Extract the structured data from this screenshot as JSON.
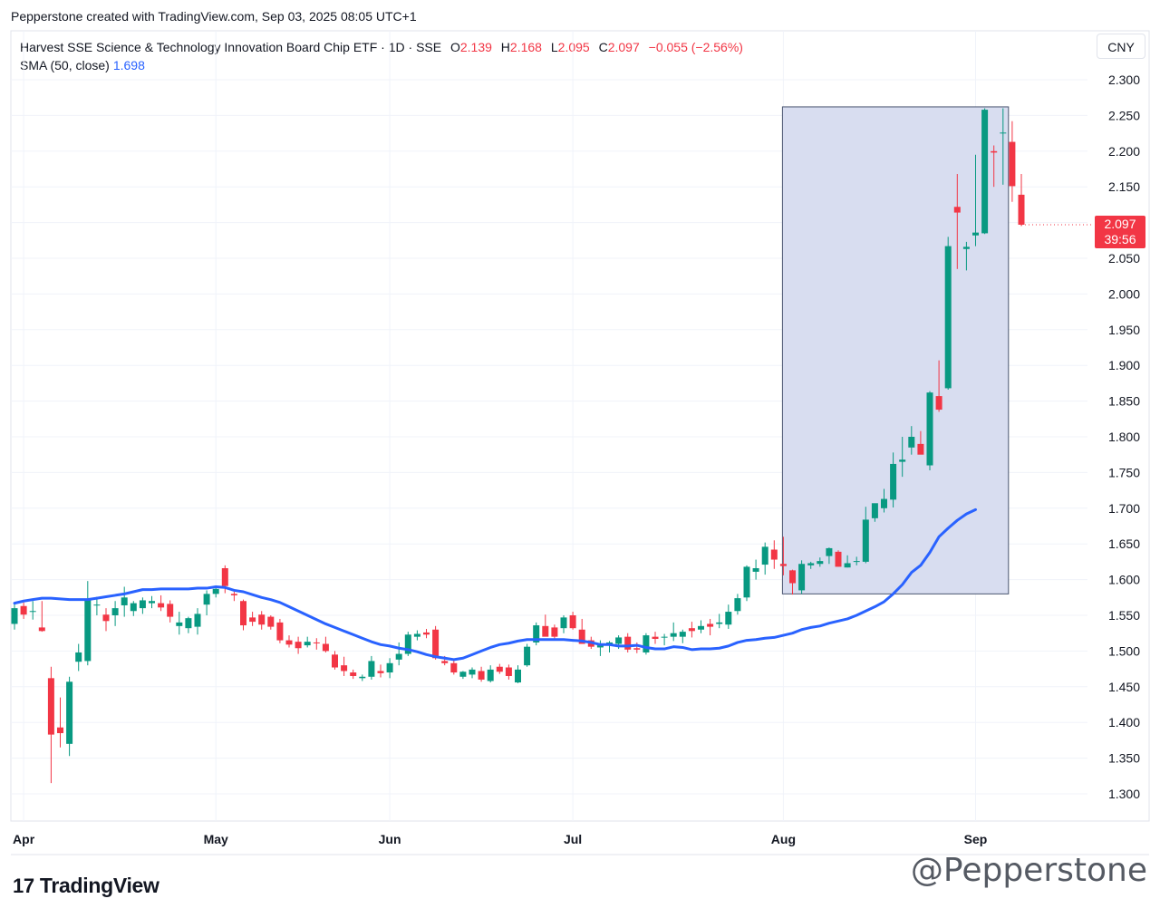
{
  "header": {
    "created_text": "Pepperstone created with TradingView.com, Sep 03, 2025 08:05 UTC+1"
  },
  "legend": {
    "symbol": "Harvest SSE Science & Technology Innovation Board Chip ETF · 1D · SSE",
    "o_label": "O",
    "o_value": "2.139",
    "h_label": "H",
    "h_value": "2.168",
    "l_label": "L",
    "l_value": "2.095",
    "c_label": "C",
    "c_value": "2.097",
    "change": "−0.055 (−2.56%)",
    "sma_label": "SMA (50, close)",
    "sma_value": "1.698"
  },
  "currency_button": "CNY",
  "last_price": {
    "price": "2.097",
    "countdown": "39:56"
  },
  "brand": {
    "mark": "17",
    "name": "TradingView"
  },
  "watermark": "@Pepperstone",
  "colors": {
    "up": "#089981",
    "down": "#f23645",
    "sma": "#2962ff",
    "highlight_fill": "#d6dbef",
    "highlight_stroke": "#4a5570"
  },
  "chart_data": {
    "type": "candlestick",
    "ylim": [
      1.28,
      2.32
    ],
    "y_ticks": [
      "1.300",
      "1.350",
      "1.400",
      "1.450",
      "1.500",
      "1.550",
      "1.600",
      "1.650",
      "1.700",
      "1.750",
      "1.800",
      "1.850",
      "1.900",
      "1.950",
      "2.000",
      "2.050",
      "2.100",
      "2.150",
      "2.200",
      "2.250",
      "2.300"
    ],
    "x_ticks": [
      {
        "label": "Apr",
        "index": 1
      },
      {
        "label": "May",
        "index": 22
      },
      {
        "label": "Jun",
        "index": 41
      },
      {
        "label": "Jul",
        "index": 61
      },
      {
        "label": "Aug",
        "index": 84
      },
      {
        "label": "Sep",
        "index": 105
      }
    ],
    "series": [
      {
        "name": "Harvest SSE Science & Technology Innovation Board Chip ETF",
        "ohlc": [
          [
            1.538,
            1.568,
            1.53,
            1.56
          ],
          [
            1.563,
            1.568,
            1.545,
            1.551
          ],
          [
            1.556,
            1.57,
            1.544,
            1.556
          ],
          [
            1.533,
            1.57,
            1.527,
            1.528
          ],
          [
            1.462,
            1.478,
            1.315,
            1.383
          ],
          [
            1.393,
            1.435,
            1.365,
            1.385
          ],
          [
            1.37,
            1.464,
            1.353,
            1.457
          ],
          [
            1.485,
            1.51,
            1.472,
            1.498
          ],
          [
            1.486,
            1.598,
            1.48,
            1.571
          ],
          [
            1.565,
            1.576,
            1.55,
            1.565
          ],
          [
            1.551,
            1.56,
            1.528,
            1.542
          ],
          [
            1.55,
            1.57,
            1.535,
            1.56
          ],
          [
            1.564,
            1.59,
            1.548,
            1.575
          ],
          [
            1.556,
            1.57,
            1.549,
            1.567
          ],
          [
            1.56,
            1.575,
            1.552,
            1.571
          ],
          [
            1.567,
            1.577,
            1.56,
            1.57
          ],
          [
            1.567,
            1.578,
            1.556,
            1.561
          ],
          [
            1.566,
            1.571,
            1.54,
            1.548
          ],
          [
            1.535,
            1.555,
            1.523,
            1.54
          ],
          [
            1.532,
            1.548,
            1.525,
            1.546
          ],
          [
            1.534,
            1.56,
            1.523,
            1.552
          ],
          [
            1.565,
            1.585,
            1.55,
            1.58
          ],
          [
            1.58,
            1.59,
            1.575,
            1.587
          ],
          [
            1.616,
            1.62,
            1.581,
            1.591
          ],
          [
            1.58,
            1.583,
            1.57,
            1.578
          ],
          [
            1.57,
            1.572,
            1.529,
            1.536
          ],
          [
            1.547,
            1.555,
            1.535,
            1.541
          ],
          [
            1.551,
            1.556,
            1.53,
            1.537
          ],
          [
            1.548,
            1.55,
            1.53,
            1.534
          ],
          [
            1.54,
            1.545,
            1.511,
            1.515
          ],
          [
            1.515,
            1.522,
            1.505,
            1.509
          ],
          [
            1.513,
            1.52,
            1.496,
            1.504
          ],
          [
            1.508,
            1.52,
            1.505,
            1.513
          ],
          [
            1.512,
            1.518,
            1.502,
            1.511
          ],
          [
            1.51,
            1.52,
            1.498,
            1.5
          ],
          [
            1.495,
            1.5,
            1.474,
            1.477
          ],
          [
            1.48,
            1.492,
            1.465,
            1.472
          ],
          [
            1.47,
            1.474,
            1.461,
            1.465
          ],
          [
            1.462,
            1.467,
            1.458,
            1.464
          ],
          [
            1.464,
            1.493,
            1.46,
            1.486
          ],
          [
            1.472,
            1.481,
            1.463,
            1.469
          ],
          [
            1.47,
            1.49,
            1.462,
            1.483
          ],
          [
            1.488,
            1.512,
            1.48,
            1.496
          ],
          [
            1.496,
            1.527,
            1.493,
            1.523
          ],
          [
            1.52,
            1.529,
            1.515,
            1.524
          ],
          [
            1.526,
            1.531,
            1.518,
            1.523
          ],
          [
            1.53,
            1.535,
            1.488,
            1.49
          ],
          [
            1.486,
            1.493,
            1.48,
            1.483
          ],
          [
            1.483,
            1.488,
            1.467,
            1.47
          ],
          [
            1.464,
            1.472,
            1.461,
            1.471
          ],
          [
            1.467,
            1.477,
            1.462,
            1.474
          ],
          [
            1.472,
            1.478,
            1.457,
            1.46
          ],
          [
            1.458,
            1.48,
            1.456,
            1.474
          ],
          [
            1.478,
            1.482,
            1.468,
            1.471
          ],
          [
            1.477,
            1.481,
            1.46,
            1.465
          ],
          [
            1.456,
            1.48,
            1.455,
            1.474
          ],
          [
            1.48,
            1.51,
            1.478,
            1.506
          ],
          [
            1.512,
            1.54,
            1.508,
            1.536
          ],
          [
            1.535,
            1.551,
            1.523,
            1.52
          ],
          [
            1.533,
            1.537,
            1.517,
            1.52
          ],
          [
            1.532,
            1.55,
            1.525,
            1.547
          ],
          [
            1.55,
            1.555,
            1.53,
            1.532
          ],
          [
            1.53,
            1.545,
            1.515,
            1.51
          ],
          [
            1.515,
            1.52,
            1.503,
            1.506
          ],
          [
            1.505,
            1.515,
            1.493,
            1.508
          ],
          [
            1.508,
            1.514,
            1.498,
            1.512
          ],
          [
            1.51,
            1.522,
            1.503,
            1.519
          ],
          [
            1.52,
            1.525,
            1.498,
            1.502
          ],
          [
            1.504,
            1.512,
            1.497,
            1.502
          ],
          [
            1.498,
            1.525,
            1.495,
            1.522
          ],
          [
            1.52,
            1.527,
            1.51,
            1.517
          ],
          [
            1.519,
            1.524,
            1.508,
            1.52
          ],
          [
            1.52,
            1.54,
            1.514,
            1.525
          ],
          [
            1.52,
            1.53,
            1.511,
            1.527
          ],
          [
            1.532,
            1.541,
            1.519,
            1.528
          ],
          [
            1.53,
            1.543,
            1.525,
            1.535
          ],
          [
            1.538,
            1.545,
            1.522,
            1.534
          ],
          [
            1.538,
            1.552,
            1.532,
            1.54
          ],
          [
            1.537,
            1.565,
            1.531,
            1.555
          ],
          [
            1.556,
            1.58,
            1.551,
            1.574
          ],
          [
            1.575,
            1.62,
            1.57,
            1.618
          ],
          [
            1.611,
            1.628,
            1.6,
            1.616
          ],
          [
            1.621,
            1.652,
            1.607,
            1.646
          ],
          [
            1.642,
            1.655,
            1.615,
            1.628
          ],
          [
            1.622,
            1.66,
            1.606,
            1.619
          ],
          [
            1.613,
            1.614,
            1.579,
            1.595
          ],
          [
            1.585,
            1.627,
            1.58,
            1.622
          ],
          [
            1.62,
            1.625,
            1.615,
            1.623
          ],
          [
            1.622,
            1.631,
            1.618,
            1.626
          ],
          [
            1.633,
            1.645,
            1.622,
            1.644
          ],
          [
            1.639,
            1.641,
            1.618,
            1.618
          ],
          [
            1.617,
            1.634,
            1.617,
            1.623
          ],
          [
            1.626,
            1.632,
            1.62,
            1.626
          ],
          [
            1.625,
            1.702,
            1.623,
            1.684
          ],
          [
            1.686,
            1.706,
            1.681,
            1.707
          ],
          [
            1.7,
            1.727,
            1.694,
            1.713
          ],
          [
            1.712,
            1.778,
            1.701,
            1.762
          ],
          [
            1.765,
            1.8,
            1.744,
            1.768
          ],
          [
            1.785,
            1.815,
            1.775,
            1.8
          ],
          [
            1.79,
            1.808,
            1.778,
            1.775
          ],
          [
            1.76,
            1.864,
            1.753,
            1.862
          ],
          [
            1.857,
            1.907,
            1.835,
            1.838
          ],
          [
            1.868,
            2.08,
            1.866,
            2.067
          ],
          [
            2.122,
            2.168,
            2.035,
            2.114
          ],
          [
            2.063,
            2.073,
            2.033,
            2.066
          ],
          [
            2.082,
            2.195,
            2.067,
            2.086
          ],
          [
            2.085,
            2.26,
            2.084,
            2.258
          ],
          [
            2.2,
            2.208,
            2.15,
            2.198
          ],
          [
            2.226,
            2.26,
            2.153,
            2.226
          ],
          [
            2.213,
            2.242,
            2.129,
            2.151
          ],
          [
            2.139,
            2.168,
            2.095,
            2.097
          ]
        ]
      },
      {
        "name": "SMA (50, close)",
        "values": [
          1.567,
          1.57,
          1.572,
          1.574,
          1.574,
          1.573,
          1.572,
          1.572,
          1.572,
          1.574,
          1.576,
          1.578,
          1.58,
          1.583,
          1.586,
          1.586,
          1.587,
          1.587,
          1.587,
          1.587,
          1.588,
          1.588,
          1.59,
          1.589,
          1.585,
          1.583,
          1.579,
          1.575,
          1.572,
          1.568,
          1.562,
          1.556,
          1.55,
          1.544,
          1.538,
          1.533,
          1.528,
          1.523,
          1.518,
          1.513,
          1.509,
          1.507,
          1.504,
          1.502,
          1.499,
          1.495,
          1.492,
          1.49,
          1.488,
          1.49,
          1.495,
          1.5,
          1.505,
          1.509,
          1.511,
          1.514,
          1.516,
          1.516,
          1.516,
          1.516,
          1.516,
          1.515,
          1.514,
          1.512,
          1.509,
          1.509,
          1.507,
          1.507,
          1.508,
          1.505,
          1.503,
          1.503,
          1.506,
          1.505,
          1.502,
          1.503,
          1.503,
          1.504,
          1.507,
          1.512,
          1.515,
          1.516,
          1.518,
          1.519,
          1.522,
          1.525,
          1.53,
          1.533,
          1.535,
          1.539,
          1.542,
          1.545,
          1.55,
          1.556,
          1.562,
          1.569,
          1.58,
          1.593,
          1.61,
          1.62,
          1.638,
          1.66,
          1.672,
          1.683,
          1.692,
          1.698
        ]
      }
    ],
    "highlight_box": {
      "x_from_index": 84,
      "x_to_index": 108,
      "y_from": 1.58,
      "y_to": 2.262
    }
  }
}
